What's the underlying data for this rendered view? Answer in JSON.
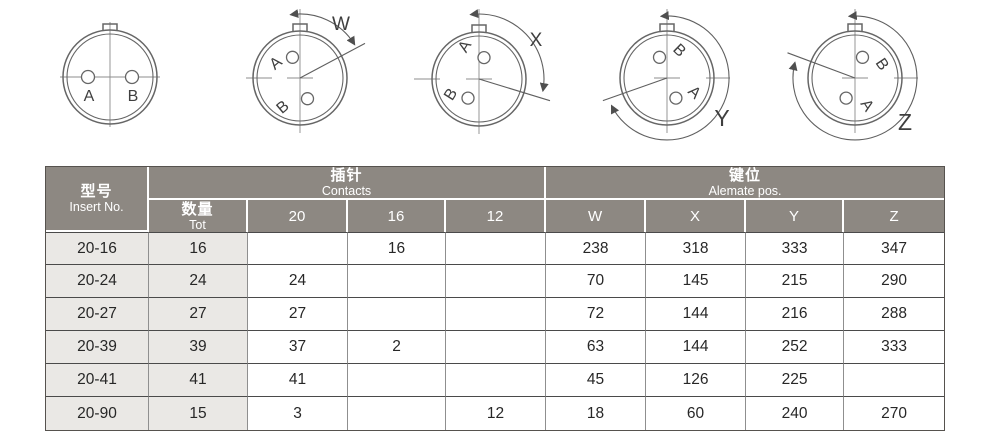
{
  "diagrams": {
    "labels": {
      "pinA": "A",
      "pinB": "B"
    },
    "positions": [
      {
        "name": "front-view",
        "angle_label": ""
      },
      {
        "name": "position-w",
        "angle_label": "W"
      },
      {
        "name": "position-x",
        "angle_label": "X"
      },
      {
        "name": "position-y",
        "angle_label": "Y"
      },
      {
        "name": "position-z",
        "angle_label": "Z"
      }
    ]
  },
  "table": {
    "header": {
      "insert_no_zh": "型号",
      "insert_no_en": "Insert No.",
      "contacts_zh": "插针",
      "contacts_en": "Contacts",
      "alternate_zh": "键位",
      "alternate_en": "Alemate pos.",
      "tot_zh": "数量",
      "tot_en": "Tot",
      "contact_sizes": [
        "20",
        "16",
        "12"
      ],
      "positions": [
        "W",
        "X",
        "Y",
        "Z"
      ]
    },
    "rows": [
      [
        "20-16",
        "16",
        "",
        "16",
        "",
        "238",
        "318",
        "333",
        "347"
      ],
      [
        "20-24",
        "24",
        "24",
        "",
        "",
        "70",
        "145",
        "215",
        "290"
      ],
      [
        "20-27",
        "27",
        "27",
        "",
        "",
        "72",
        "144",
        "216",
        "288"
      ],
      [
        "20-39",
        "39",
        "37",
        "2",
        "",
        "63",
        "144",
        "252",
        "333"
      ],
      [
        "20-41",
        "41",
        "41",
        "",
        "",
        "45",
        "126",
        "225",
        ""
      ],
      [
        "20-90",
        "15",
        "3",
        "",
        "12",
        "18",
        "60",
        "240",
        "270"
      ]
    ]
  },
  "colors": {
    "header_bg": "#8d8882",
    "shaded_col_bg": "#eae8e5",
    "header_text": "#ffffff",
    "body_text": "#272727",
    "drawing_line": "#666666"
  }
}
